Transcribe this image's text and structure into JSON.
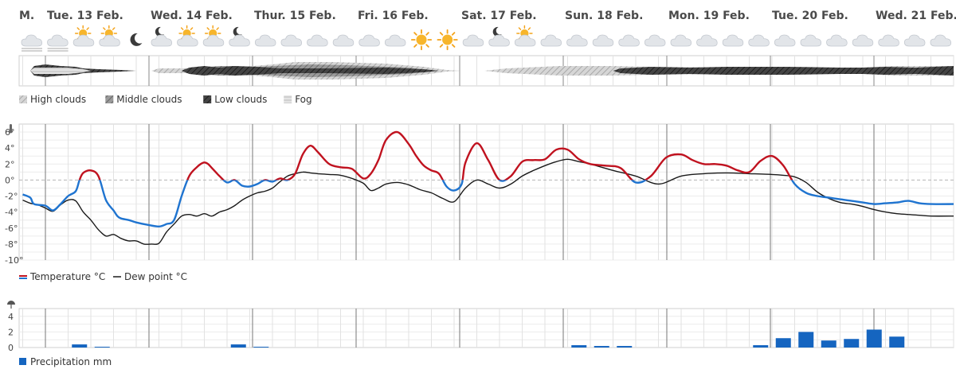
{
  "days": [
    {
      "label": "M."
    },
    {
      "label": "Tue. 13 Feb."
    },
    {
      "label": "Wed. 14 Feb."
    },
    {
      "label": "Thur. 15 Feb."
    },
    {
      "label": "Fri. 16 Feb."
    },
    {
      "label": "Sat. 17 Feb."
    },
    {
      "label": "Sun. 18 Feb."
    },
    {
      "label": "Mon. 19 Feb."
    },
    {
      "label": "Tue. 20 Feb."
    },
    {
      "label": "Wed. 21 Feb."
    }
  ],
  "weather_icons": [
    "cloud-fog-icon",
    "cloud-fog-icon",
    "partly-cloudy-day-icon",
    "sun-cloud-icon",
    "moon-icon",
    "partly-cloudy-night-icon",
    "partly-cloudy-day-icon",
    "partly-cloudy-day-icon",
    "partly-cloudy-night-icon",
    "cloud-icon",
    "cloud-icon",
    "cloud-icon",
    "cloud-icon",
    "cloud-icon",
    "cloud-icon",
    "sun-icon",
    "sun-icon",
    "cloud-icon",
    "partly-cloudy-night-icon",
    "partly-cloudy-day-icon",
    "cloud-icon",
    "cloud-icon",
    "cloud-icon",
    "cloud-icon",
    "cloud-icon",
    "cloud-icon",
    "cloud-icon",
    "cloud-icon",
    "cloud-icon",
    "cloud-icon",
    "cloud-icon",
    "cloud-icon",
    "cloud-icon",
    "cloud-icon",
    "cloud-icon",
    "cloud-icon",
    "cloud-icon",
    "cloud-icon",
    "cloud-icon",
    "cloud-icon",
    "cloud-icon",
    "rain-cloud-icon",
    "rain-cloud-icon",
    "snow-cloud-icon",
    "snow-cloud-icon",
    "snow-cloud-icon",
    "snow-cloud-icon"
  ],
  "clouds": {
    "legend": [
      "High clouds",
      "Middle clouds",
      "Low clouds",
      "Fog"
    ],
    "colors": {
      "high": "#c8c8c8",
      "middle": "#8a8a8a",
      "low": "#3a3a3a",
      "fog": "#d8d8d8"
    }
  },
  "temperature_chart": {
    "y_ticks": [
      "6°",
      "4°",
      "2°",
      "0°",
      "-2°",
      "-4°",
      "-6°",
      "-8°",
      "-10°"
    ],
    "legend": [
      "Temperature °C",
      "Dew point °C"
    ],
    "colors": {
      "warm": "#c0121f",
      "cold": "#1f74d0",
      "dew": "#1a1a1a"
    }
  },
  "precip_chart": {
    "y_ticks": [
      "4",
      "2",
      "0"
    ],
    "legend": "Precipitation mm",
    "color": "#1565c0"
  },
  "chart_data": [
    {
      "type": "line",
      "ylabel": "",
      "ylim": [
        -10,
        7
      ],
      "grid": true,
      "x_unit": "hours from Tue. 13 Feb. 00:00",
      "series": [
        {
          "name": "Temperature °C",
          "x": [
            -6,
            -4,
            -3,
            0,
            2,
            4,
            6,
            8,
            9,
            10,
            12,
            14,
            16,
            18,
            19,
            20,
            22,
            24,
            27,
            30,
            32,
            34,
            36,
            38,
            40,
            41,
            42,
            43,
            44,
            45,
            46,
            48,
            50,
            52,
            54,
            56,
            58,
            60,
            62,
            64,
            66,
            68,
            70,
            72,
            75,
            78,
            81,
            84,
            86,
            88,
            90,
            93,
            96,
            98,
            100,
            102,
            104,
            106,
            108,
            110,
            111,
            114,
            117,
            120,
            123,
            126,
            129,
            132,
            135,
            138,
            141,
            144,
            148,
            152,
            156,
            160,
            164,
            168,
            171,
            174,
            177,
            180,
            183,
            186,
            189,
            192,
            195,
            198,
            201,
            204,
            207,
            210,
            213,
            216,
            219,
            222,
            225,
            228,
            231,
            234,
            240
          ],
          "y": [
            -1.8,
            -2.2,
            -3.0,
            -3.2,
            -3.8,
            -3.0,
            -2.0,
            -1.4,
            0.0,
            0.9,
            1.2,
            0.5,
            -2.5,
            -3.8,
            -4.5,
            -4.8,
            -5.0,
            -5.3,
            -5.6,
            -5.8,
            -5.5,
            -5.0,
            -2.0,
            0.5,
            1.6,
            2.0,
            2.2,
            2.0,
            1.5,
            1.0,
            0.5,
            -0.3,
            0.0,
            -0.7,
            -0.8,
            -0.5,
            0.0,
            -0.2,
            0.2,
            0.0,
            0.8,
            3.2,
            4.3,
            3.5,
            2.0,
            1.6,
            1.4,
            0.2,
            0.8,
            2.5,
            5.0,
            6.0,
            4.5,
            3.0,
            1.8,
            1.2,
            0.8,
            -0.8,
            -1.3,
            -0.5,
            2.2,
            4.6,
            2.5,
            0.0,
            0.5,
            2.3,
            2.5,
            2.6,
            3.8,
            3.8,
            2.6,
            2.0,
            1.8,
            1.5,
            -0.3,
            0.5,
            2.8,
            3.2,
            2.5,
            2.0,
            2.0,
            1.8,
            1.2,
            1.0,
            2.4,
            3.0,
            1.8,
            -0.5,
            -1.6,
            -2.0,
            -2.2,
            -2.4,
            -2.6,
            -2.8,
            -3.0,
            -2.9,
            -2.8,
            -2.6,
            -2.9,
            -3.0,
            -3.0
          ]
        },
        {
          "name": "Dew point °C",
          "x": [
            -6,
            -4,
            -2,
            0,
            2,
            4,
            6,
            8,
            10,
            12,
            14,
            16,
            18,
            20,
            22,
            24,
            26,
            28,
            30,
            32,
            34,
            36,
            38,
            40,
            42,
            44,
            46,
            48,
            50,
            52,
            54,
            56,
            58,
            60,
            62,
            64,
            66,
            68,
            70,
            72,
            75,
            78,
            81,
            84,
            86,
            88,
            90,
            93,
            96,
            99,
            102,
            105,
            108,
            111,
            114,
            117,
            120,
            123,
            126,
            129,
            132,
            135,
            138,
            141,
            144,
            150,
            156,
            162,
            168,
            174,
            180,
            186,
            192,
            195,
            198,
            201,
            204,
            207,
            210,
            213,
            216,
            219,
            222,
            225,
            228,
            231,
            234,
            240
          ],
          "y": [
            -2.5,
            -2.9,
            -3.1,
            -3.5,
            -3.9,
            -3.1,
            -2.5,
            -2.6,
            -4.0,
            -5.0,
            -6.2,
            -7.0,
            -6.8,
            -7.3,
            -7.6,
            -7.6,
            -8.0,
            -8.0,
            -7.9,
            -6.5,
            -5.5,
            -4.5,
            -4.3,
            -4.5,
            -4.2,
            -4.5,
            -4.0,
            -3.7,
            -3.2,
            -2.5,
            -2.0,
            -1.6,
            -1.4,
            -1.0,
            -0.2,
            0.5,
            0.8,
            1.0,
            0.9,
            0.8,
            0.7,
            0.6,
            0.2,
            -0.4,
            -1.3,
            -1.0,
            -0.5,
            -0.3,
            -0.6,
            -1.2,
            -1.6,
            -2.3,
            -2.7,
            -1.0,
            0.0,
            -0.5,
            -1.0,
            -0.5,
            0.5,
            1.2,
            1.8,
            2.3,
            2.6,
            2.3,
            2.0,
            1.2,
            0.5,
            -0.5,
            0.5,
            0.8,
            0.9,
            0.8,
            0.7,
            0.6,
            0.4,
            -0.3,
            -1.5,
            -2.3,
            -2.8,
            -3.0,
            -3.3,
            -3.7,
            -4.0,
            -4.2,
            -4.3,
            -4.4,
            -4.5,
            -4.5
          ]
        }
      ]
    },
    {
      "type": "bar",
      "ylabel": "",
      "ylim": [
        0,
        5
      ],
      "x_unit": "hours from Tue. 13 Feb. 00:00",
      "series": [
        {
          "name": "Precipitation mm",
          "x": [
            9,
            15,
            51,
            57,
            141,
            147,
            153,
            189,
            195,
            201,
            207,
            213,
            219,
            225
          ],
          "y": [
            0.4,
            0.1,
            0.4,
            0.1,
            0.3,
            0.2,
            0.2,
            0.3,
            1.2,
            2.0,
            0.9,
            1.1,
            2.3,
            1.4
          ]
        }
      ]
    }
  ]
}
